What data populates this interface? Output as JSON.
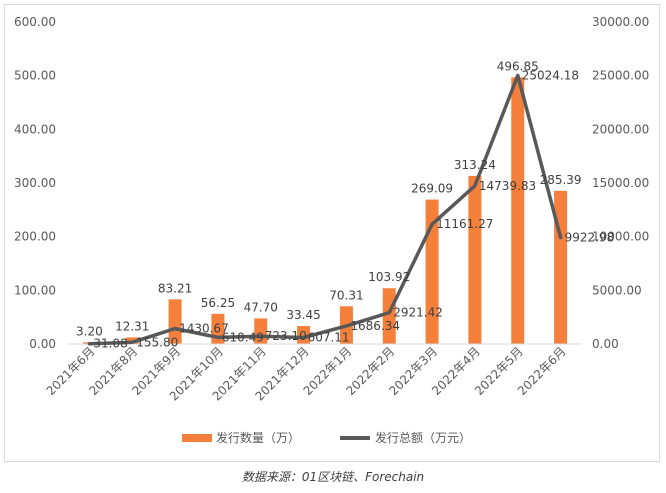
{
  "chart_data": {
    "type": "bar",
    "categories": [
      "2021年6月",
      "2021年8月",
      "2021年9月",
      "2021年10月",
      "2021年11月",
      "2021年12月",
      "2022年1月",
      "2022年2月",
      "2022年3月",
      "2022年4月",
      "2022年5月",
      "2022年6月"
    ],
    "series": [
      {
        "name": "发行数量（万）",
        "type": "bar",
        "axis": "left",
        "color": "#f4803b",
        "values": [
          3.2,
          12.31,
          83.21,
          56.25,
          47.7,
          33.45,
          70.31,
          103.92,
          269.09,
          313.24,
          496.85,
          285.39
        ],
        "labels": [
          "3.20",
          "12.31",
          "83.21",
          "56.25",
          "47.70",
          "33.45",
          "70.31",
          "103.92",
          "269.09",
          "313.24",
          "496.85",
          "285.39"
        ]
      },
      {
        "name": "发行总额（万元）",
        "type": "line",
        "axis": "right",
        "color": "#595959",
        "values": [
          31.08,
          155.8,
          1430.67,
          610.49,
          723.1,
          607.11,
          1686.34,
          2921.42,
          11161.27,
          14739.83,
          25024.18,
          9922.98
        ],
        "labels": [
          "31.08",
          "155.80",
          "1430.67",
          "610.49",
          "723.10",
          "607.11",
          "1686.34",
          "2921.42",
          "11161.27",
          "14739.83",
          "25024.18",
          "9922.98"
        ]
      }
    ],
    "y_left": {
      "ylim": [
        0,
        600
      ],
      "ticks": [
        "0.00",
        "100.00",
        "200.00",
        "300.00",
        "400.00",
        "500.00",
        "600.00"
      ]
    },
    "y_right": {
      "ylim": [
        0,
        30000
      ],
      "ticks": [
        "0.00",
        "5000.00",
        "10000.00",
        "15000.00",
        "20000.00",
        "25000.00",
        "30000.00"
      ]
    },
    "grid": false,
    "legend_position": "bottom"
  },
  "source_text": "数据来源：01区块链、Forechain"
}
